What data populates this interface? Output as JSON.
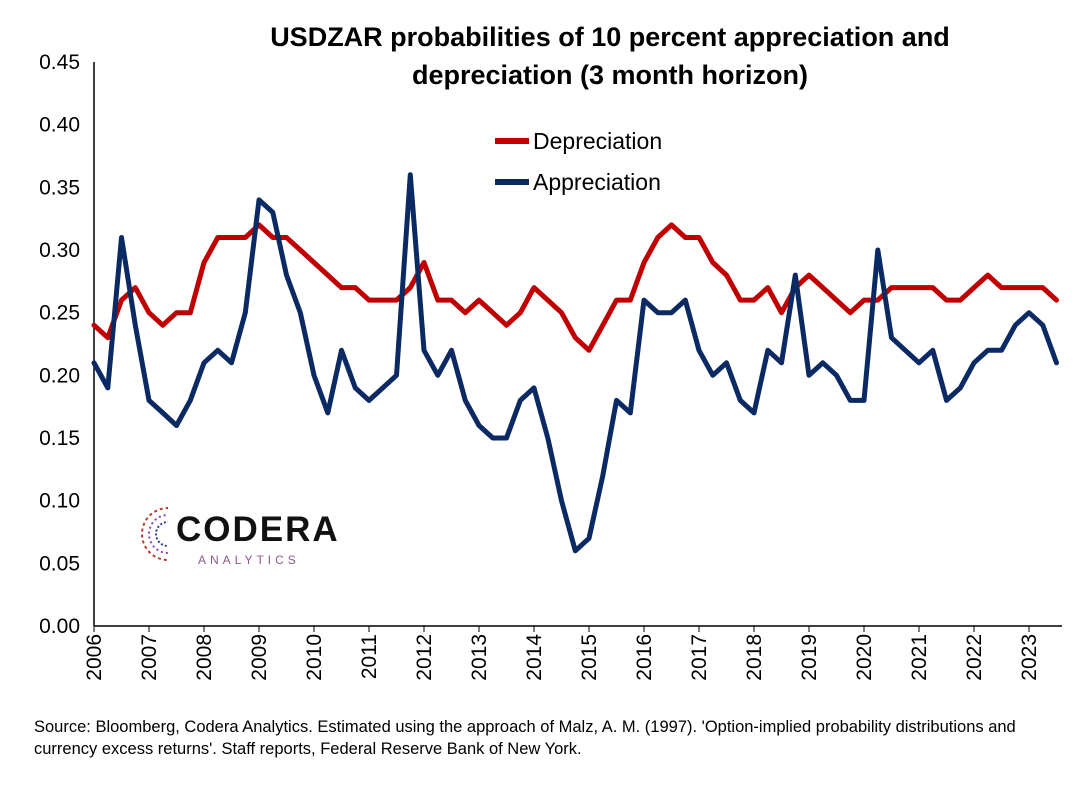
{
  "chart_data": {
    "type": "line",
    "title": "USDZAR probabilities of 10 percent appreciation and depreciation (3 month horizon)",
    "title_lines": [
      "USDZAR probabilities of 10 percent appreciation and",
      "depreciation (3 month horizon)"
    ],
    "xlabel": "",
    "ylabel": "",
    "xlim": [
      2006,
      2023.6
    ],
    "ylim": [
      0,
      0.45
    ],
    "yticks": [
      "0.00",
      "0.05",
      "0.10",
      "0.15",
      "0.20",
      "0.25",
      "0.30",
      "0.35",
      "0.40",
      "0.45"
    ],
    "xticks": [
      "2006",
      "2007",
      "2008",
      "2009",
      "2010",
      "2011",
      "2012",
      "2013",
      "2014",
      "2015",
      "2016",
      "2017",
      "2018",
      "2019",
      "2020",
      "2021",
      "2022",
      "2023"
    ],
    "grid": false,
    "legend_position": "top-center",
    "x": [
      2006.0,
      2006.25,
      2006.5,
      2006.75,
      2007.0,
      2007.25,
      2007.5,
      2007.75,
      2008.0,
      2008.25,
      2008.5,
      2008.75,
      2009.0,
      2009.25,
      2009.5,
      2009.75,
      2010.0,
      2010.25,
      2010.5,
      2010.75,
      2011.0,
      2011.25,
      2011.5,
      2011.75,
      2012.0,
      2012.25,
      2012.5,
      2012.75,
      2013.0,
      2013.25,
      2013.5,
      2013.75,
      2014.0,
      2014.25,
      2014.5,
      2014.75,
      2015.0,
      2015.25,
      2015.5,
      2015.75,
      2016.0,
      2016.25,
      2016.5,
      2016.75,
      2017.0,
      2017.25,
      2017.5,
      2017.75,
      2018.0,
      2018.25,
      2018.5,
      2018.75,
      2019.0,
      2019.25,
      2019.5,
      2019.75,
      2020.0,
      2020.25,
      2020.5,
      2020.75,
      2021.0,
      2021.25,
      2021.5,
      2021.75,
      2022.0,
      2022.25,
      2022.5,
      2022.75,
      2023.0,
      2023.25,
      2023.5
    ],
    "series": [
      {
        "name": "Depreciation",
        "color": "#c00000",
        "values": [
          0.24,
          0.23,
          0.26,
          0.27,
          0.25,
          0.24,
          0.25,
          0.25,
          0.29,
          0.31,
          0.31,
          0.31,
          0.32,
          0.31,
          0.31,
          0.3,
          0.29,
          0.28,
          0.27,
          0.27,
          0.26,
          0.26,
          0.26,
          0.27,
          0.29,
          0.26,
          0.26,
          0.25,
          0.26,
          0.25,
          0.24,
          0.25,
          0.27,
          0.26,
          0.25,
          0.23,
          0.22,
          0.24,
          0.26,
          0.26,
          0.29,
          0.31,
          0.32,
          0.31,
          0.31,
          0.29,
          0.28,
          0.26,
          0.26,
          0.27,
          0.25,
          0.27,
          0.28,
          0.27,
          0.26,
          0.25,
          0.26,
          0.26,
          0.27,
          0.27,
          0.27,
          0.27,
          0.26,
          0.26,
          0.27,
          0.28,
          0.27,
          0.27,
          0.27,
          0.27,
          0.26
        ]
      },
      {
        "name": "Appreciation",
        "color": "#0b2a63",
        "values": [
          0.21,
          0.19,
          0.31,
          0.24,
          0.18,
          0.17,
          0.16,
          0.18,
          0.21,
          0.22,
          0.21,
          0.25,
          0.34,
          0.33,
          0.28,
          0.25,
          0.2,
          0.17,
          0.22,
          0.19,
          0.18,
          0.19,
          0.2,
          0.36,
          0.22,
          0.2,
          0.22,
          0.18,
          0.16,
          0.15,
          0.15,
          0.18,
          0.19,
          0.15,
          0.1,
          0.06,
          0.07,
          0.12,
          0.18,
          0.17,
          0.26,
          0.25,
          0.25,
          0.26,
          0.22,
          0.2,
          0.21,
          0.18,
          0.17,
          0.22,
          0.21,
          0.28,
          0.2,
          0.21,
          0.2,
          0.18,
          0.18,
          0.3,
          0.23,
          0.22,
          0.21,
          0.22,
          0.18,
          0.19,
          0.21,
          0.22,
          0.22,
          0.24,
          0.25,
          0.24,
          0.21
        ]
      }
    ]
  },
  "logo": {
    "name": "CODERA",
    "sub": "ANALYTICS"
  },
  "source_note": "Source: Bloomberg, Codera Analytics. Estimated using the approach of Malz, A. M. (1997). 'Option-implied probability distributions and currency excess returns'. Staff reports, Federal Reserve Bank of New York."
}
